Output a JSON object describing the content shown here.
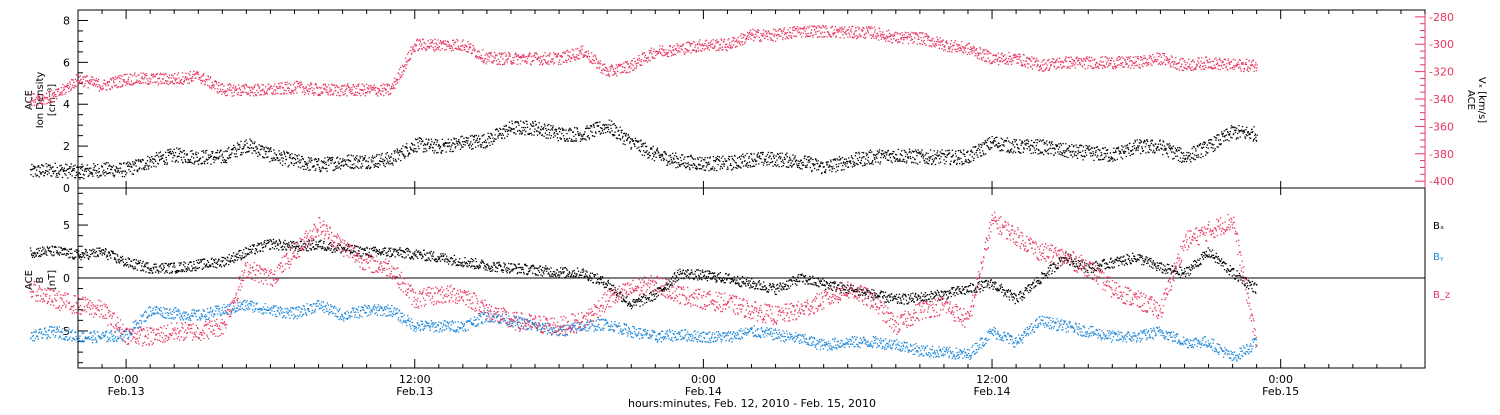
{
  "chart_data": [
    {
      "type": "scatter",
      "panel": "top",
      "ylabel_left_line1": "ACE",
      "ylabel_left_line2": "Ion Density",
      "ylabel_left_unit": "[cm⁻³]",
      "ylabel_right_line1": "ACE",
      "ylabel_right_line2": "Vₓ [km/s]",
      "ylim_left": [
        0,
        8.5
      ],
      "ylim_right": [
        -405,
        -275
      ],
      "yticks_left": [
        0,
        2,
        4,
        6,
        8
      ],
      "yticks_right": [
        -280,
        -300,
        -320,
        -340,
        -360,
        -380,
        -400
      ],
      "right_axis_color": "#e8365f",
      "series": [
        {
          "color": "#000000",
          "axis": "left",
          "points": [
            [
              -4,
              0.8
            ],
            [
              -3,
              0.9
            ],
            [
              -2,
              0.8
            ],
            [
              -1,
              0.9
            ],
            [
              0,
              0.9
            ],
            [
              1,
              1.3
            ],
            [
              2,
              1.6
            ],
            [
              3,
              1.5
            ],
            [
              4,
              1.5
            ],
            [
              5,
              2.1
            ],
            [
              6,
              1.6
            ],
            [
              7,
              1.3
            ],
            [
              8,
              1.1
            ],
            [
              9,
              1.3
            ],
            [
              10,
              1.3
            ],
            [
              11,
              1.4
            ],
            [
              12,
              2.1
            ],
            [
              13,
              2.0
            ],
            [
              14,
              2.2
            ],
            [
              15,
              2.3
            ],
            [
              16,
              2.9
            ],
            [
              17,
              2.9
            ],
            [
              18,
              2.6
            ],
            [
              19,
              2.6
            ],
            [
              20,
              3.0
            ],
            [
              21,
              2.2
            ],
            [
              22,
              1.6
            ],
            [
              23,
              1.3
            ],
            [
              24,
              1.2
            ],
            [
              25,
              1.2
            ],
            [
              26,
              1.4
            ],
            [
              27,
              1.4
            ],
            [
              28,
              1.3
            ],
            [
              29,
              1.0
            ],
            [
              30,
              1.3
            ],
            [
              31,
              1.5
            ],
            [
              32,
              1.6
            ],
            [
              33,
              1.5
            ],
            [
              34,
              1.5
            ],
            [
              35,
              1.5
            ],
            [
              36,
              2.2
            ],
            [
              37,
              2.0
            ],
            [
              38,
              2.0
            ],
            [
              39,
              1.8
            ],
            [
              40,
              1.7
            ],
            [
              41,
              1.6
            ],
            [
              42,
              2.0
            ],
            [
              43,
              2.0
            ],
            [
              44,
              1.5
            ],
            [
              45,
              2.0
            ],
            [
              46,
              2.7
            ],
            [
              47,
              2.6
            ]
          ]
        },
        {
          "color": "#e8365f",
          "axis": "right",
          "points": [
            [
              -4,
              -340
            ],
            [
              -3,
              -338
            ],
            [
              -2,
              -325
            ],
            [
              -1,
              -330
            ],
            [
              0,
              -325
            ],
            [
              1,
              -325
            ],
            [
              2,
              -325
            ],
            [
              3,
              -323
            ],
            [
              4,
              -333
            ],
            [
              5,
              -333
            ],
            [
              6,
              -333
            ],
            [
              7,
              -331
            ],
            [
              8,
              -333
            ],
            [
              9,
              -333
            ],
            [
              10,
              -333
            ],
            [
              11,
              -333
            ],
            [
              12,
              -300
            ],
            [
              13,
              -300
            ],
            [
              14,
              -300
            ],
            [
              15,
              -310
            ],
            [
              16,
              -310
            ],
            [
              17,
              -310
            ],
            [
              18,
              -310
            ],
            [
              19,
              -305
            ],
            [
              20,
              -320
            ],
            [
              21,
              -315
            ],
            [
              22,
              -305
            ],
            [
              23,
              -303
            ],
            [
              24,
              -300
            ],
            [
              25,
              -300
            ],
            [
              26,
              -293
            ],
            [
              27,
              -293
            ],
            [
              28,
              -290
            ],
            [
              29,
              -290
            ],
            [
              30,
              -291
            ],
            [
              31,
              -291
            ],
            [
              32,
              -295
            ],
            [
              33,
              -295
            ],
            [
              34,
              -300
            ],
            [
              35,
              -303
            ],
            [
              36,
              -310
            ],
            [
              37,
              -310
            ],
            [
              38,
              -315
            ],
            [
              39,
              -313
            ],
            [
              40,
              -313
            ],
            [
              41,
              -313
            ],
            [
              42,
              -313
            ],
            [
              43,
              -310
            ],
            [
              44,
              -315
            ],
            [
              45,
              -313
            ],
            [
              46,
              -315
            ],
            [
              47,
              -315
            ]
          ]
        }
      ]
    },
    {
      "type": "scatter",
      "panel": "bottom",
      "ylabel_line1": "ACE",
      "ylabel_line2": "B",
      "ylabel_unit": "[nT]",
      "ylim": [
        -8.5,
        8.5
      ],
      "yticks": [
        5,
        0,
        -5
      ],
      "zero_line": true,
      "series": [
        {
          "name": "Bₓ",
          "color": "#000000",
          "points": [
            [
              -4,
              2.5
            ],
            [
              -3,
              2.6
            ],
            [
              -2,
              2.2
            ],
            [
              -1,
              2.5
            ],
            [
              0,
              1.5
            ],
            [
              1,
              1.0
            ],
            [
              2,
              1.0
            ],
            [
              3,
              1.3
            ],
            [
              4,
              1.6
            ],
            [
              5,
              2.5
            ],
            [
              6,
              3.3
            ],
            [
              7,
              3.0
            ],
            [
              8,
              3.2
            ],
            [
              9,
              2.8
            ],
            [
              10,
              2.5
            ],
            [
              11,
              2.5
            ],
            [
              12,
              2.3
            ],
            [
              13,
              2.0
            ],
            [
              14,
              1.6
            ],
            [
              15,
              1.2
            ],
            [
              16,
              1.0
            ],
            [
              17,
              0.8
            ],
            [
              18,
              0.6
            ],
            [
              19,
              0.5
            ],
            [
              20,
              -0.5
            ],
            [
              21,
              -2.5
            ],
            [
              22,
              -1.5
            ],
            [
              23,
              0.5
            ],
            [
              24,
              0.3
            ],
            [
              25,
              0.0
            ],
            [
              26,
              -0.5
            ],
            [
              27,
              -1.0
            ],
            [
              28,
              0.0
            ],
            [
              29,
              -0.5
            ],
            [
              30,
              -1.0
            ],
            [
              31,
              -1.5
            ],
            [
              32,
              -2.0
            ],
            [
              33,
              -1.8
            ],
            [
              34,
              -1.5
            ],
            [
              35,
              -1.0
            ],
            [
              36,
              -0.5
            ],
            [
              37,
              -2.0
            ],
            [
              38,
              0.0
            ],
            [
              39,
              2.0
            ],
            [
              40,
              1.0
            ],
            [
              41,
              1.5
            ],
            [
              42,
              2.0
            ],
            [
              43,
              1.0
            ],
            [
              44,
              0.5
            ],
            [
              45,
              2.5
            ],
            [
              46,
              0.5
            ],
            [
              47,
              -1.0
            ]
          ]
        },
        {
          "name": "Bᵧ",
          "color": "#1f88d9",
          "points": [
            [
              -4,
              -5.5
            ],
            [
              -3,
              -5.0
            ],
            [
              -2,
              -5.5
            ],
            [
              -1,
              -5.5
            ],
            [
              0,
              -5.3
            ],
            [
              1,
              -3.0
            ],
            [
              2,
              -3.3
            ],
            [
              3,
              -3.5
            ],
            [
              4,
              -3.0
            ],
            [
              5,
              -2.5
            ],
            [
              6,
              -3.0
            ],
            [
              7,
              -3.3
            ],
            [
              8,
              -2.5
            ],
            [
              9,
              -3.5
            ],
            [
              10,
              -3.0
            ],
            [
              11,
              -3.0
            ],
            [
              12,
              -4.5
            ],
            [
              13,
              -4.5
            ],
            [
              14,
              -4.5
            ],
            [
              15,
              -3.5
            ],
            [
              16,
              -4.0
            ],
            [
              17,
              -4.5
            ],
            [
              18,
              -5.0
            ],
            [
              19,
              -4.5
            ],
            [
              20,
              -4.3
            ],
            [
              21,
              -5.0
            ],
            [
              22,
              -5.5
            ],
            [
              23,
              -5.3
            ],
            [
              24,
              -5.5
            ],
            [
              25,
              -5.5
            ],
            [
              26,
              -5.0
            ],
            [
              27,
              -5.3
            ],
            [
              28,
              -5.7
            ],
            [
              29,
              -6.3
            ],
            [
              30,
              -6.0
            ],
            [
              31,
              -6.0
            ],
            [
              32,
              -6.2
            ],
            [
              33,
              -6.8
            ],
            [
              34,
              -7.0
            ],
            [
              35,
              -7.2
            ],
            [
              36,
              -5.0
            ],
            [
              37,
              -6.0
            ],
            [
              38,
              -4.0
            ],
            [
              39,
              -4.5
            ],
            [
              40,
              -5.0
            ],
            [
              41,
              -5.5
            ],
            [
              42,
              -5.5
            ],
            [
              43,
              -5.0
            ],
            [
              44,
              -6.0
            ],
            [
              45,
              -6.0
            ],
            [
              46,
              -7.5
            ],
            [
              47,
              -6.0
            ]
          ]
        },
        {
          "name": "B_z",
          "color": "#e8365f",
          "points": [
            [
              -4,
              -1.0
            ],
            [
              -3,
              -2.0
            ],
            [
              -2,
              -2.5
            ],
            [
              -1,
              -3.0
            ],
            [
              0,
              -5.3
            ],
            [
              1,
              -5.5
            ],
            [
              2,
              -5.0
            ],
            [
              3,
              -5.0
            ],
            [
              4,
              -4.5
            ],
            [
              5,
              1.0
            ],
            [
              6,
              0.0
            ],
            [
              7,
              2.5
            ],
            [
              8,
              5.0
            ],
            [
              9,
              3.0
            ],
            [
              10,
              1.5
            ],
            [
              11,
              1.0
            ],
            [
              12,
              -2.0
            ],
            [
              13,
              -1.5
            ],
            [
              14,
              -1.5
            ],
            [
              15,
              -3.0
            ],
            [
              16,
              -4.0
            ],
            [
              17,
              -4.3
            ],
            [
              18,
              -4.5
            ],
            [
              19,
              -4.0
            ],
            [
              20,
              -2.0
            ],
            [
              21,
              -1.0
            ],
            [
              22,
              -0.5
            ],
            [
              23,
              -1.5
            ],
            [
              24,
              -2.0
            ],
            [
              25,
              -2.3
            ],
            [
              26,
              -3.0
            ],
            [
              27,
              -3.5
            ],
            [
              28,
              -3.0
            ],
            [
              29,
              -2.0
            ],
            [
              30,
              -1.0
            ],
            [
              31,
              -2.0
            ],
            [
              32,
              -4.5
            ],
            [
              33,
              -3.0
            ],
            [
              34,
              -2.5
            ],
            [
              35,
              -4.0
            ],
            [
              36,
              5.5
            ],
            [
              37,
              4.0
            ],
            [
              38,
              2.5
            ],
            [
              39,
              2.0
            ],
            [
              40,
              1.0
            ],
            [
              41,
              -1.0
            ],
            [
              42,
              -2.0
            ],
            [
              43,
              -3.0
            ],
            [
              44,
              3.5
            ],
            [
              45,
              4.5
            ],
            [
              46,
              5.5
            ],
            [
              47,
              -6.5
            ]
          ]
        }
      ],
      "legend_placement": "right"
    }
  ],
  "x_axis": {
    "ticks": [
      {
        "hours": 0,
        "time": "0:00",
        "date": "Feb.13"
      },
      {
        "hours": 12,
        "time": "12:00",
        "date": "Feb.13"
      },
      {
        "hours": 24,
        "time": "0:00",
        "date": "Feb.14"
      },
      {
        "hours": 36,
        "time": "12:00",
        "date": "Feb.14"
      },
      {
        "hours": 48,
        "time": "0:00",
        "date": "Feb.15"
      }
    ],
    "range_hours": [
      -2,
      54
    ],
    "xlabel": "hours:minutes, Feb. 12, 2010 - Feb. 15, 2010"
  }
}
